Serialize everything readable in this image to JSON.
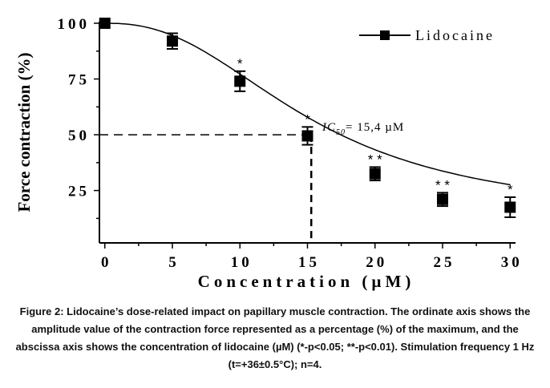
{
  "chart_data": {
    "type": "line",
    "title": "",
    "xlabel": "Concentration (µM)",
    "ylabel": "Force contraction (%)",
    "xlim": [
      -0.4,
      30.4
    ],
    "ylim": [
      1.5,
      100
    ],
    "x_ticks": [
      0,
      5,
      10,
      15,
      20,
      25,
      30
    ],
    "x_tick_labels": [
      "0",
      "5",
      "10",
      "15",
      "20",
      "25",
      "30"
    ],
    "y_ticks": [
      25,
      50,
      75,
      100
    ],
    "y_tick_labels": [
      "25",
      "50",
      "75",
      "100"
    ],
    "grid": false,
    "legend": {
      "position": "top-right",
      "entries": [
        "Lidocaine"
      ]
    },
    "series": [
      {
        "name": "Lidocaine",
        "x": [
          0,
          5,
          10,
          15,
          20,
          25,
          30
        ],
        "y": [
          100,
          92,
          74,
          49.5,
          32.5,
          21,
          17.5
        ],
        "error": [
          0,
          3.5,
          4.5,
          4,
          3,
          3,
          4.5
        ],
        "significance": [
          "",
          "",
          "*",
          "*",
          "* *",
          "* *",
          "*"
        ]
      }
    ],
    "annotations": [
      {
        "text_main": "IC",
        "text_sub": "50",
        "text_rest": "= 15,4 µM",
        "x": 15.4,
        "y": 50
      }
    ],
    "reference_lines": {
      "x": 15.4,
      "y": 50
    }
  },
  "caption": "Figure 2: Lidocaine’s dose-related impact on papillary muscle contraction. The ordinate axis shows the amplitude value of the contraction force represented as a percentage (%) of the maximum, and the abscissa axis shows the concentration of lidocaine (µM) (*-p<0.05; **-p<0.01). Stimulation frequency 1 Hz (t=+36±0.5°C); n=4."
}
